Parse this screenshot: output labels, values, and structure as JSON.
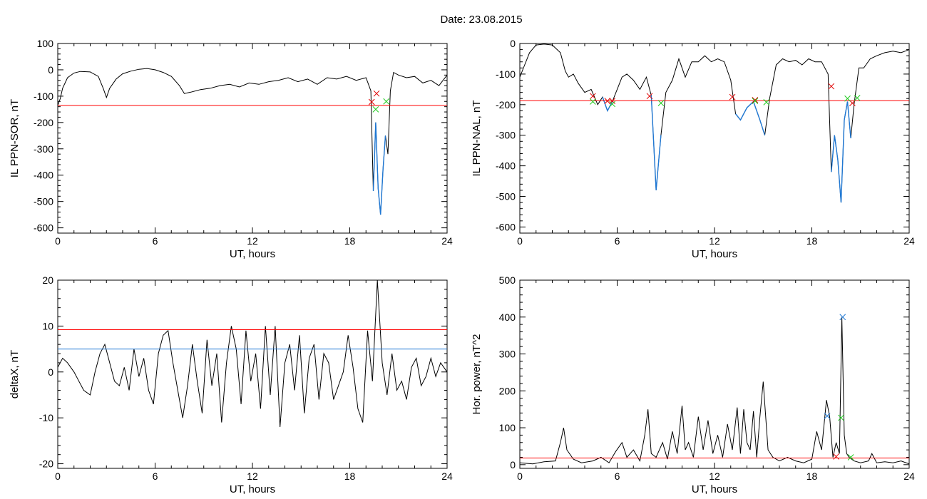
{
  "title": "Date:  23.08.2015",
  "colors": {
    "series": "#000000",
    "threshold_red": "#ff0000",
    "threshold_blue": "#1f78d4",
    "marker_red": "#e00000",
    "marker_green": "#22cc22",
    "marker_blue": "#1f78d4"
  },
  "chart_data": [
    {
      "type": "line",
      "xlabel": "UT, hours",
      "ylabel": "IL PPN-SOR, nT",
      "xlim": [
        0,
        24
      ],
      "ylim": [
        -620,
        100
      ],
      "xticks": [
        0,
        6,
        12,
        18,
        24
      ],
      "yticks": [
        100,
        0,
        -100,
        -200,
        -300,
        -400,
        -500,
        -600
      ],
      "series": [
        {
          "x": [
            0,
            0.15,
            0.3,
            0.6,
            1.0,
            1.4,
            2.0,
            2.5,
            2.8,
            3.0,
            3.2,
            3.6,
            4.0,
            4.5,
            5.0,
            5.5,
            6.0,
            6.5,
            7.0,
            7.5,
            7.8,
            8.2,
            8.8,
            9.4,
            10.0,
            10.6,
            11.2,
            11.8,
            12.4,
            13.0,
            13.6,
            14.2,
            14.8,
            15.4,
            16.0,
            16.6,
            17.2,
            17.8,
            18.4,
            19.0,
            19.3,
            19.45,
            19.6,
            19.75,
            19.9,
            20.05,
            20.2,
            20.35,
            20.5,
            20.7,
            21.0,
            21.5,
            22.0,
            22.5,
            23.0,
            23.5,
            24.0
          ],
          "y": [
            -135,
            -110,
            -70,
            -30,
            -12,
            -6,
            -8,
            -25,
            -70,
            -105,
            -70,
            -35,
            -15,
            -5,
            2,
            5,
            0,
            -10,
            -25,
            -60,
            -90,
            -85,
            -75,
            -70,
            -60,
            -55,
            -65,
            -50,
            -55,
            -45,
            -40,
            -30,
            -45,
            -35,
            -55,
            -30,
            -35,
            -25,
            -40,
            -30,
            -80,
            -460,
            -200,
            -450,
            -550,
            -380,
            -250,
            -320,
            -80,
            -10,
            -20,
            -30,
            -25,
            -50,
            -40,
            -60,
            -20
          ]
        }
      ],
      "hlines": [
        {
          "y": -135,
          "color": "red"
        }
      ],
      "markers": [
        {
          "x": 19.35,
          "y": -122,
          "color": "red"
        },
        {
          "x": 19.65,
          "y": -90,
          "color": "red"
        },
        {
          "x": 19.6,
          "y": -150,
          "color": "green"
        },
        {
          "x": 20.25,
          "y": -120,
          "color": "green"
        }
      ],
      "highlight": {
        "from": 19.35,
        "to": 20.3,
        "color": "blue"
      }
    },
    {
      "type": "line",
      "xlabel": "UT, hours",
      "ylabel": "IL PPN-NAL, nT",
      "xlim": [
        0,
        24
      ],
      "ylim": [
        -620,
        0
      ],
      "xticks": [
        0,
        6,
        12,
        18,
        24
      ],
      "yticks": [
        0,
        -100,
        -200,
        -300,
        -400,
        -500,
        -600
      ],
      "series": [
        {
          "x": [
            0,
            0.3,
            0.6,
            1.0,
            1.5,
            2.0,
            2.5,
            2.8,
            3.0,
            3.3,
            3.6,
            4.0,
            4.4,
            4.8,
            5.1,
            5.4,
            5.7,
            6.0,
            6.3,
            6.6,
            7.0,
            7.4,
            7.8,
            8.1,
            8.4,
            8.7,
            9.0,
            9.4,
            9.8,
            10.2,
            10.6,
            11.0,
            11.4,
            11.8,
            12.2,
            12.6,
            13.0,
            13.3,
            13.6,
            14.0,
            14.4,
            14.8,
            15.1,
            15.4,
            15.8,
            16.2,
            16.6,
            17.0,
            17.4,
            17.8,
            18.2,
            18.6,
            19.0,
            19.2,
            19.4,
            19.6,
            19.8,
            20.0,
            20.2,
            20.4,
            20.6,
            20.9,
            21.2,
            21.6,
            22.0,
            22.5,
            23.0,
            23.5,
            24.0
          ],
          "y": [
            -110,
            -70,
            -30,
            -5,
            -2,
            -5,
            -30,
            -90,
            -110,
            -100,
            -130,
            -160,
            -150,
            -200,
            -175,
            -220,
            -190,
            -150,
            -110,
            -100,
            -120,
            -150,
            -110,
            -170,
            -480,
            -300,
            -160,
            -120,
            -50,
            -110,
            -60,
            -60,
            -40,
            -60,
            -50,
            -60,
            -120,
            -230,
            -250,
            -210,
            -190,
            -250,
            -300,
            -180,
            -70,
            -50,
            -60,
            -55,
            -70,
            -50,
            -60,
            -60,
            -100,
            -420,
            -300,
            -380,
            -520,
            -250,
            -190,
            -310,
            -200,
            -80,
            -80,
            -50,
            -40,
            -30,
            -25,
            -30,
            -20
          ]
        }
      ],
      "hlines": [
        {
          "y": -187,
          "color": "red"
        }
      ],
      "markers": [
        {
          "x": 4.5,
          "y": -172,
          "color": "red"
        },
        {
          "x": 5.4,
          "y": -188,
          "color": "red"
        },
        {
          "x": 5.7,
          "y": -188,
          "color": "red"
        },
        {
          "x": 8.0,
          "y": -172,
          "color": "red"
        },
        {
          "x": 13.1,
          "y": -175,
          "color": "red"
        },
        {
          "x": 14.5,
          "y": -185,
          "color": "red"
        },
        {
          "x": 19.2,
          "y": -140,
          "color": "red"
        },
        {
          "x": 20.5,
          "y": -195,
          "color": "red"
        },
        {
          "x": 4.5,
          "y": -190,
          "color": "green"
        },
        {
          "x": 5.7,
          "y": -198,
          "color": "green"
        },
        {
          "x": 8.7,
          "y": -195,
          "color": "green"
        },
        {
          "x": 14.5,
          "y": -188,
          "color": "green"
        },
        {
          "x": 15.2,
          "y": -192,
          "color": "green"
        },
        {
          "x": 20.2,
          "y": -180,
          "color": "green"
        },
        {
          "x": 20.8,
          "y": -178,
          "color": "green"
        }
      ],
      "highlight_segments": [
        {
          "from": 5.1,
          "to": 5.7
        },
        {
          "from": 8.1,
          "to": 8.7
        },
        {
          "from": 13.1,
          "to": 15.1
        },
        {
          "from": 19.2,
          "to": 20.4
        }
      ]
    },
    {
      "type": "line",
      "xlabel": "UT, hours",
      "ylabel": "deltaX, nT",
      "xlim": [
        0,
        24
      ],
      "ylim": [
        -21,
        20
      ],
      "xticks": [
        0,
        6,
        12,
        18,
        24
      ],
      "yticks": [
        20,
        10,
        0,
        -10,
        -20
      ],
      "series": [
        {
          "x": [
            0,
            0.3,
            0.6,
            1.0,
            1.3,
            1.6,
            2.0,
            2.3,
            2.6,
            2.9,
            3.2,
            3.5,
            3.8,
            4.1,
            4.4,
            4.7,
            5.0,
            5.3,
            5.6,
            5.9,
            6.2,
            6.5,
            6.8,
            7.1,
            7.4,
            7.7,
            8.0,
            8.3,
            8.6,
            8.9,
            9.2,
            9.5,
            9.8,
            10.1,
            10.4,
            10.7,
            11.0,
            11.3,
            11.6,
            11.9,
            12.2,
            12.5,
            12.8,
            13.1,
            13.4,
            13.7,
            14.0,
            14.3,
            14.6,
            14.9,
            15.2,
            15.5,
            15.8,
            16.1,
            16.4,
            16.7,
            17.0,
            17.3,
            17.6,
            17.9,
            18.2,
            18.5,
            18.8,
            19.1,
            19.4,
            19.7,
            20.0,
            20.3,
            20.6,
            20.9,
            21.2,
            21.5,
            21.8,
            22.1,
            22.4,
            22.7,
            23.0,
            23.3,
            23.6,
            24.0
          ],
          "y": [
            1,
            3,
            2,
            0,
            -2,
            -4,
            -5,
            0,
            4,
            6,
            2,
            -2,
            -3,
            1,
            -4,
            5,
            -1,
            3,
            -4,
            -7,
            4,
            8,
            9,
            2,
            -4,
            -10,
            -3,
            6,
            -2,
            -9,
            7,
            -3,
            4,
            -11,
            2,
            10,
            5,
            -7,
            9,
            -2,
            4,
            -8,
            10,
            -5,
            10,
            -12,
            2,
            6,
            -4,
            8,
            -9,
            3,
            6,
            -6,
            4,
            2,
            -6,
            -3,
            0,
            8,
            1,
            -8,
            -11,
            9,
            -2,
            20,
            2,
            -5,
            4,
            -4,
            -2,
            -6,
            1,
            3,
            -3,
            -1,
            3,
            -1,
            2,
            0
          ]
        }
      ],
      "hlines": [
        {
          "y": 9.2,
          "color": "red"
        },
        {
          "y": 5.0,
          "color": "blue"
        }
      ]
    },
    {
      "type": "line",
      "xlabel": "UT, hours",
      "ylabel": "Hor. power, nT^2",
      "xlim": [
        0,
        24
      ],
      "ylim": [
        -10,
        500
      ],
      "xticks": [
        0,
        6,
        12,
        18,
        24
      ],
      "yticks": [
        500,
        400,
        300,
        200,
        100,
        0
      ],
      "series": [
        {
          "x": [
            0,
            0.8,
            1.5,
            2.2,
            2.5,
            2.7,
            2.9,
            3.3,
            3.8,
            4.5,
            5.0,
            5.5,
            5.9,
            6.3,
            6.6,
            7.0,
            7.4,
            7.7,
            7.9,
            8.1,
            8.4,
            8.8,
            9.1,
            9.4,
            9.7,
            10.0,
            10.2,
            10.4,
            10.7,
            11.0,
            11.3,
            11.6,
            11.9,
            12.2,
            12.5,
            12.8,
            13.1,
            13.4,
            13.6,
            13.8,
            14.0,
            14.2,
            14.4,
            14.6,
            14.8,
            15.0,
            15.3,
            15.6,
            16.0,
            16.5,
            17.0,
            17.5,
            18.0,
            18.3,
            18.6,
            18.9,
            19.1,
            19.3,
            19.5,
            19.7,
            19.85,
            20.0,
            20.15,
            20.3,
            20.6,
            21.0,
            21.5,
            21.7,
            22.0,
            22.5,
            23.0,
            23.5,
            24.0
          ],
          "y": [
            5,
            2,
            8,
            10,
            60,
            100,
            40,
            15,
            5,
            10,
            20,
            5,
            35,
            60,
            20,
            40,
            10,
            80,
            150,
            30,
            20,
            60,
            15,
            90,
            30,
            160,
            40,
            60,
            20,
            130,
            40,
            120,
            30,
            80,
            20,
            110,
            40,
            155,
            30,
            150,
            60,
            40,
            145,
            20,
            130,
            225,
            40,
            20,
            10,
            20,
            10,
            5,
            15,
            90,
            40,
            175,
            130,
            20,
            60,
            30,
            400,
            80,
            30,
            20,
            10,
            5,
            10,
            30,
            5,
            8,
            5,
            10,
            2
          ]
        }
      ],
      "hlines": [
        {
          "y": 18,
          "color": "red"
        }
      ],
      "markers": [
        {
          "x": 18.95,
          "y": 132,
          "color": "blue"
        },
        {
          "x": 19.9,
          "y": 400,
          "color": "blue"
        },
        {
          "x": 19.8,
          "y": 127,
          "color": "green"
        },
        {
          "x": 20.4,
          "y": 20,
          "color": "green"
        },
        {
          "x": 19.5,
          "y": 22,
          "color": "red"
        }
      ]
    }
  ]
}
